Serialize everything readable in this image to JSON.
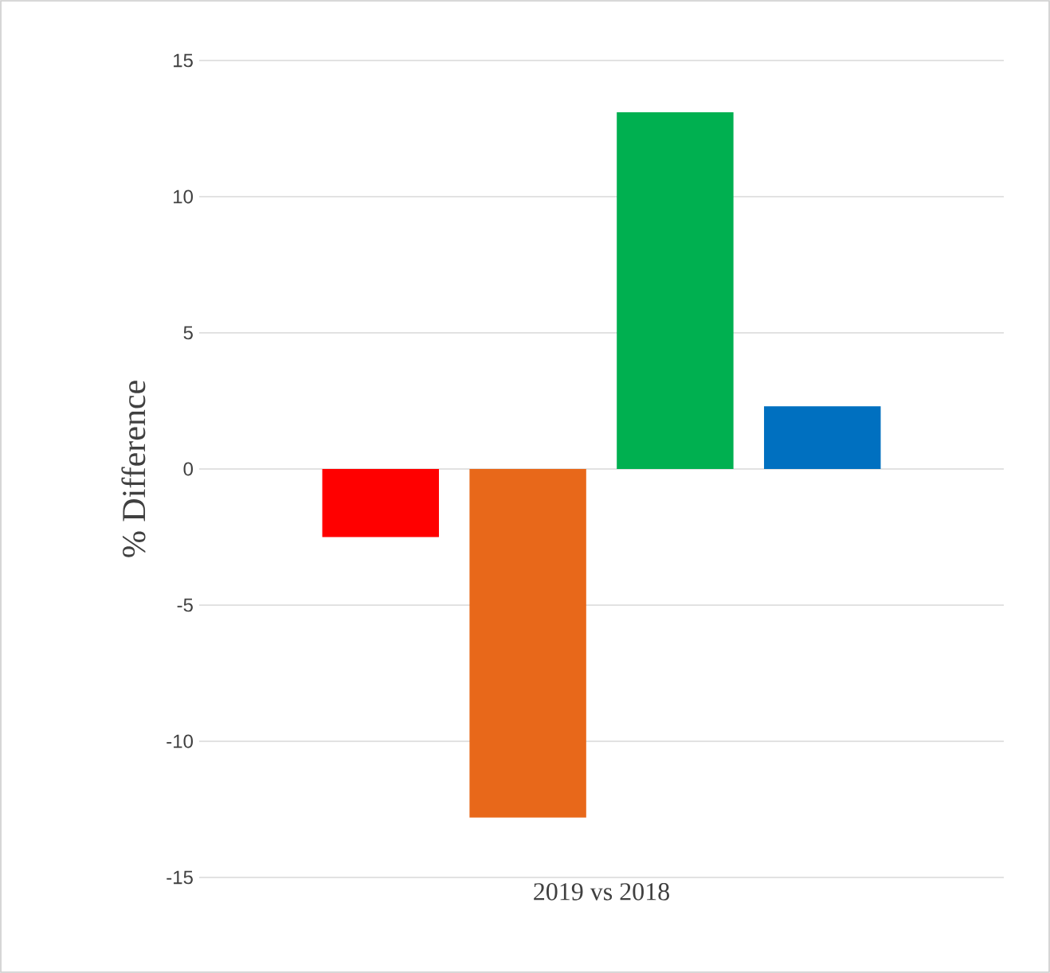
{
  "chart_data": {
    "type": "bar",
    "ylabel": "% Difference",
    "categories": [
      "2019 vs 2018"
    ],
    "series": [
      {
        "color": "#ff0000",
        "values": [
          -2.5
        ]
      },
      {
        "color": "#e8681a",
        "values": [
          -12.8
        ]
      },
      {
        "color": "#00b050",
        "values": [
          13.1
        ]
      },
      {
        "color": "#0070c0",
        "values": [
          2.3
        ]
      }
    ],
    "ylim": [
      -15,
      15
    ],
    "yticks": [
      -15,
      -10,
      -5,
      0,
      5,
      10,
      15
    ],
    "grid": "y"
  }
}
